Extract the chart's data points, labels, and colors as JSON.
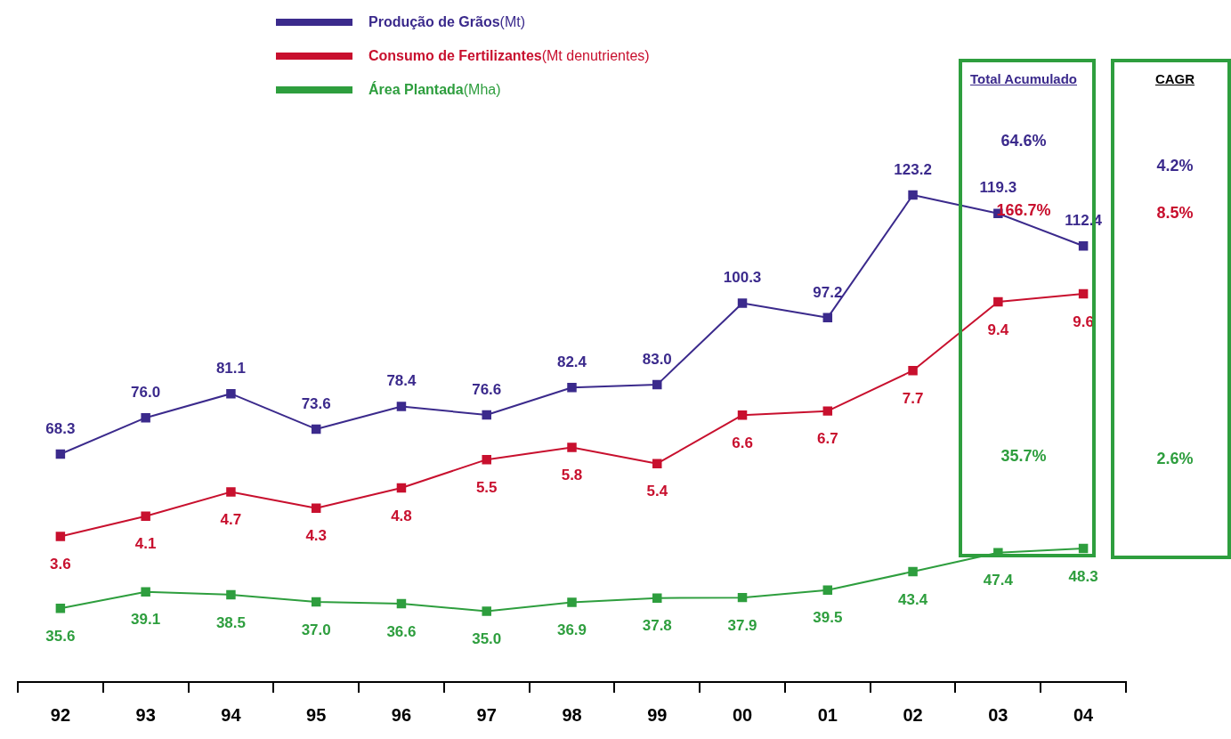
{
  "chart_data": {
    "type": "line",
    "categories": [
      "92",
      "93",
      "94",
      "95",
      "96",
      "97",
      "98",
      "99",
      "00",
      "01",
      "02",
      "03",
      "04"
    ],
    "series": [
      {
        "name": "Produção de Grãos(Mt)",
        "color": "#3b2a8c",
        "values": [
          68.3,
          76.0,
          81.1,
          73.6,
          78.4,
          76.6,
          82.4,
          83.0,
          100.3,
          97.2,
          123.2,
          119.3,
          112.4
        ],
        "value_labels": [
          "68.3",
          "76.0",
          "81.1",
          "73.6",
          "78.4",
          "76.6",
          "82.4",
          "83.0",
          "100.3",
          "97.2",
          "123.2",
          "119.3",
          "112.4"
        ]
      },
      {
        "name": "Consumo de Fertilizantes(Mt denutrientes)",
        "color": "#c8102e",
        "axis": "y2",
        "values": [
          3.6,
          4.1,
          4.7,
          4.3,
          4.8,
          5.5,
          5.8,
          5.4,
          6.6,
          6.7,
          7.7,
          9.4,
          9.6
        ],
        "value_labels": [
          "3.6",
          "4.1",
          "4.7",
          "4.3",
          "4.8",
          "5.5",
          "5.8",
          "5.4",
          "6.6",
          "6.7",
          "7.7",
          "9.4",
          "9.6"
        ]
      },
      {
        "name": "Área Plantada(Mha)",
        "color": "#2e9e3e",
        "values": [
          35.6,
          39.1,
          38.5,
          37.0,
          36.6,
          35.0,
          36.9,
          37.8,
          37.9,
          39.5,
          43.4,
          47.4,
          48.3
        ],
        "value_labels": [
          "35.6",
          "39.1",
          "38.5",
          "37.0",
          "36.6",
          "35.0",
          "36.9",
          "37.8",
          "37.9",
          "39.5",
          "43.4",
          "47.4",
          "48.3"
        ]
      }
    ],
    "tick_labels": "x",
    "grid": false,
    "legend": "top",
    "marker": "square",
    "line_style": "solid",
    "annotations": [
      "Total Acumulado",
      "64.6%",
      "166.7%",
      "35.7%",
      "CAGR",
      "4.2%",
      "8.5%",
      "2.6%"
    ]
  }
}
